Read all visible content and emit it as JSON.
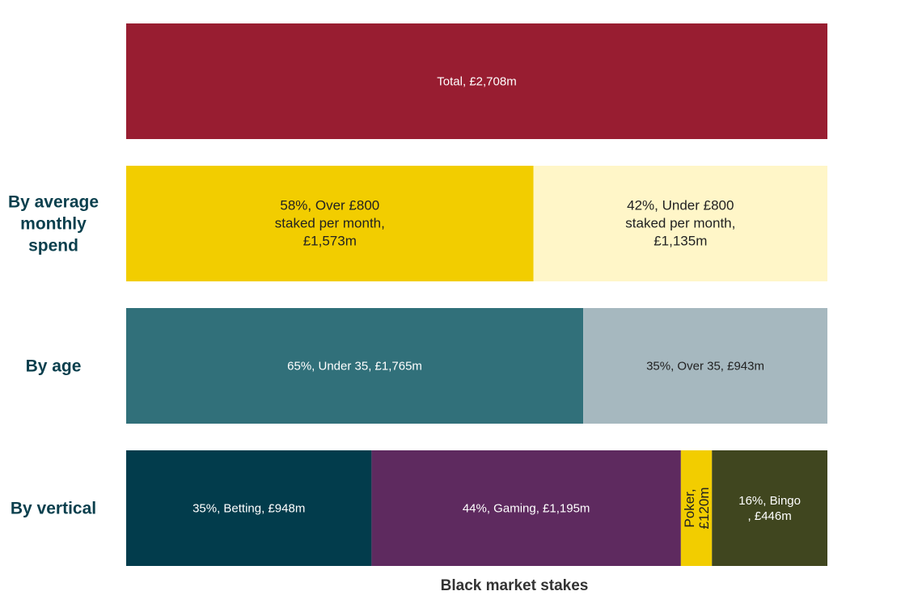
{
  "chart_data": {
    "type": "bar",
    "stacked": true,
    "orientation": "horizontal",
    "normalized": true,
    "xlabel": "Black market stakes",
    "total": 2708,
    "rows": [
      {
        "label": "",
        "segments": [
          {
            "label": "Total, £2,708m",
            "value": 2708,
            "percent": 100,
            "color": "#981d31",
            "text_color": "#ffffff"
          }
        ]
      },
      {
        "label": "By average monthly spend",
        "segments": [
          {
            "label": "58%, Over £800 staked per month, £1,573m",
            "value": 1573,
            "percent": 58,
            "color": "#f2cd00",
            "text_color": "#222222"
          },
          {
            "label": "42%, Under £800 staked per month, £1,135m",
            "value": 1135,
            "percent": 42,
            "color": "#fff6c8",
            "text_color": "#222222"
          }
        ]
      },
      {
        "label": "By age",
        "segments": [
          {
            "label": "65%, Under 35, £1,765m",
            "value": 1765,
            "percent": 65,
            "color": "#31707a",
            "text_color": "#ffffff"
          },
          {
            "label": "35%, Over 35, £943m",
            "value": 943,
            "percent": 35,
            "color": "#a6b8bf",
            "text_color": "#222222"
          }
        ]
      },
      {
        "label": "By vertical",
        "segments": [
          {
            "label": "35%, Betting, £948m",
            "value": 948,
            "percent": 35,
            "color": "#023c4c",
            "text_color": "#ffffff"
          },
          {
            "label": "44%, Gaming, £1,195m",
            "value": 1195,
            "percent": 44,
            "color": "#5e2a5f",
            "text_color": "#ffffff"
          },
          {
            "label": "Poker, £120m",
            "value": 120,
            "percent": 4,
            "color": "#f2cd00",
            "text_color": "#222222"
          },
          {
            "label": "16%, Bingo , £446m",
            "value": 446,
            "percent": 16,
            "color": "#40461f",
            "text_color": "#ffffff"
          }
        ]
      }
    ]
  }
}
